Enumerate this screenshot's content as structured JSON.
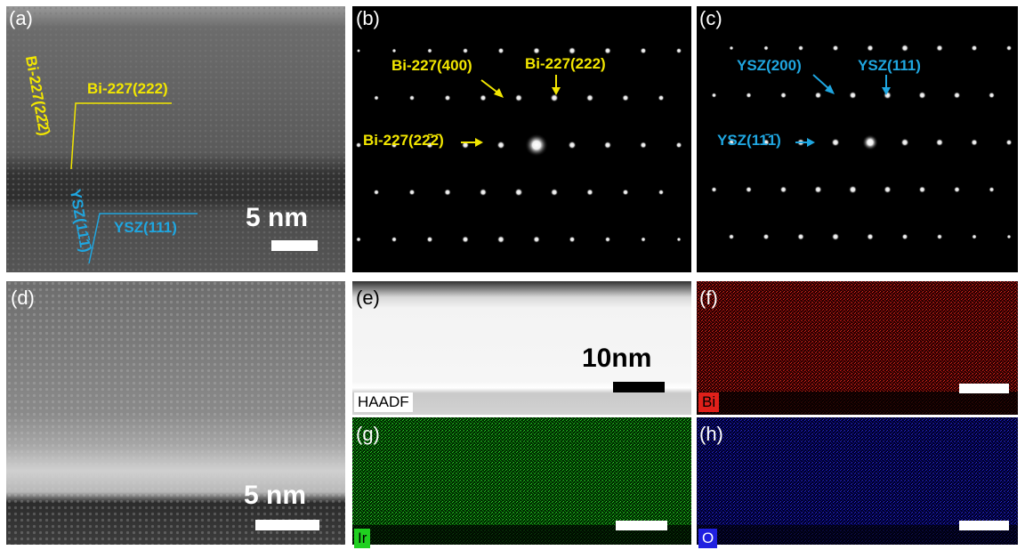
{
  "panels": {
    "a": {
      "label": "(a)",
      "annotations": {
        "bi_plane": "Bi-227(222)",
        "bi_plane_rot": "Bi-227(2",
        "bi_plane_rot_bar": "2̄2̄",
        "bi_plane_rot_end": ")",
        "ysz_plane": "YSZ(111)",
        "ysz_plane_rot": "YSZ(1",
        "ysz_plane_rot_bar": "1̄1̄",
        "ysz_plane_rot_end": ")"
      },
      "scalebar": "5 nm"
    },
    "b": {
      "label": "(b)",
      "annotations": {
        "spot_400": "Bi-227(400)",
        "spot_222": "Bi-227(222)",
        "spot_2bb": "Bi-227(2",
        "spot_2bb_bar": "2̄2̄",
        "spot_2bb_end": ")"
      }
    },
    "c": {
      "label": "(c)",
      "annotations": {
        "spot_200": "YSZ(200)",
        "spot_111": "YSZ(111)",
        "spot_1bb": "YSZ(1",
        "spot_1bb_bar": "1̄1̄",
        "spot_1bb_end": ")"
      }
    },
    "d": {
      "label": "(d)",
      "scalebar": "5 nm"
    },
    "e": {
      "label": "(e)",
      "scalebar": "10nm",
      "tag": "HAADF"
    },
    "f": {
      "label": "(f)",
      "tag": "Bi"
    },
    "g": {
      "label": "(g)",
      "tag": "Ir"
    },
    "h": {
      "label": "(h)",
      "tag": "O"
    }
  },
  "colors": {
    "bi_annotation": "#f2e600",
    "ysz_annotation": "#1fa6e0",
    "bi_map": "#e0201a",
    "ir_map": "#20d020",
    "o_map": "#2020e0"
  }
}
